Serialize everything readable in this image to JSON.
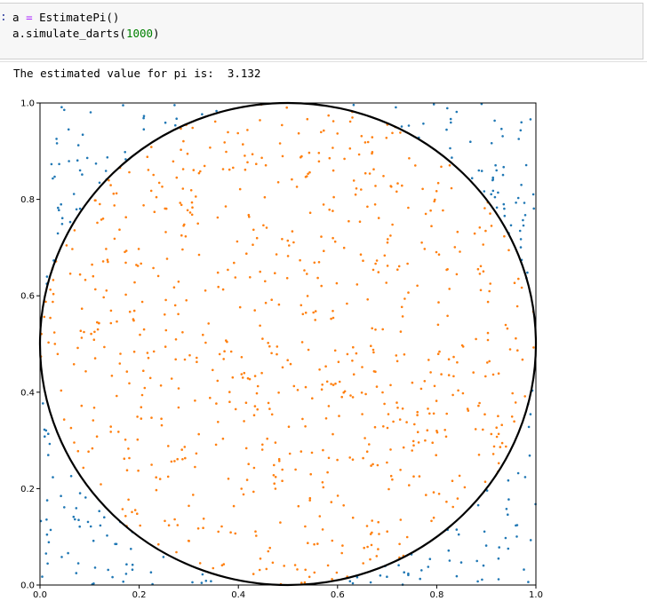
{
  "cell": {
    "prompt": ":",
    "line1_a": "a ",
    "line1_eq": "=",
    "line1_b": " EstimatePi()",
    "line2_a": "a.simulate_darts(",
    "line2_num": "1000",
    "line2_b": ")"
  },
  "output": {
    "text": "The estimated value for pi is:  3.132"
  },
  "chart_data": {
    "type": "scatter",
    "title": "",
    "xlabel": "",
    "ylabel": "",
    "xlim": [
      0,
      1
    ],
    "ylim": [
      0,
      1
    ],
    "x_ticks": [
      "0.0",
      "0.2",
      "0.4",
      "0.6",
      "0.8",
      "1.0"
    ],
    "y_ticks": [
      "0.0",
      "0.2",
      "0.4",
      "0.6",
      "0.8",
      "1.0"
    ],
    "circle": {
      "center": [
        0.5,
        0.5
      ],
      "radius": 0.5,
      "color": "#000000"
    },
    "n_darts": 1000,
    "estimate": 3.132,
    "series": [
      {
        "role": "outside-circle",
        "color": "#1f77b4"
      },
      {
        "role": "inside-circle",
        "color": "#ff7f0e"
      }
    ]
  }
}
